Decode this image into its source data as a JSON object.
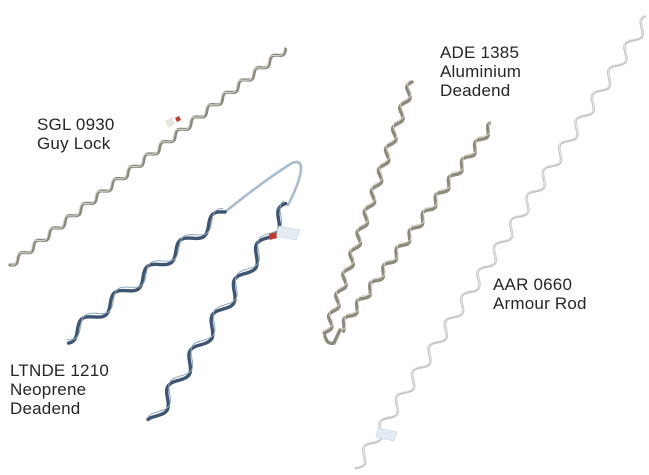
{
  "products": [
    {
      "name": "SGL 0930 Guy Lock",
      "lines": [
        "SGL 0930",
        "Guy Lock"
      ],
      "color": "#8c8a80"
    },
    {
      "name": "ADE 1385 Aluminium Deadend",
      "lines": [
        "ADE 1385",
        "Aluminium",
        "Deadend"
      ],
      "color": "#8d8a7c"
    },
    {
      "name": "AAR 0660 Armour Rod",
      "lines": [
        "AAR 0660",
        "Armour Rod"
      ],
      "color": "#c3c5c7"
    },
    {
      "name": "LTNDE 1210 Neoprene Deadend",
      "lines": [
        "LTNDE 1210",
        "Neoprene",
        "Deadend"
      ],
      "color": "#3d5572"
    }
  ],
  "colors": {
    "background": "#ffffff",
    "text": "#262626",
    "tape": "#e4ecf3",
    "marker": "#c23a2a"
  }
}
